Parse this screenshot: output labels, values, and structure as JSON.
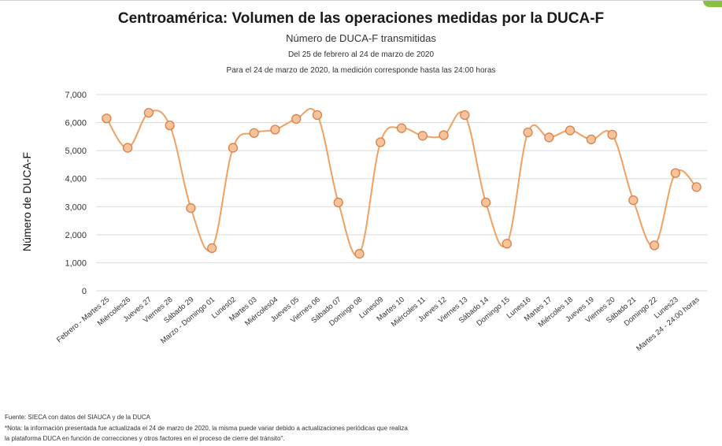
{
  "header": {
    "title": "Centroamérica: Volumen de las operaciones medidas por la DUCA-F",
    "subtitle": "Número de DUCA-F transmitidas",
    "date_range": "Del 25 de febrero al 24 de marzo de 2020",
    "measure_note": "Para el 24 de marzo de 2020, la medición corresponde hasta las 24:00 horas"
  },
  "footer": {
    "source": "Fuente: SIECA con datos del SIAUCA y de la DUCA",
    "note_line1": "*Nota: la información presentada fue actualizada el 24 de marzo de 2020, la misma puede variar debido a actualizaciones periódicas que realiza",
    "note_line2": "la plataforma DUCA en función de correcciones y otros factores en el proceso de cierre del tránsito\"."
  },
  "colors": {
    "line": "#f0a060",
    "marker_fill": "#f6c39a",
    "marker_stroke": "#d9814a",
    "grid": "#d9d9d9",
    "accent": "#8bbf3f"
  },
  "chart_data": {
    "type": "line",
    "title": "Centroamérica: Volumen de las operaciones medidas por la DUCA-F",
    "subtitle": "Número de DUCA-F transmitidas",
    "xlabel": "",
    "ylabel": "Número de DUCA-F",
    "ylim": [
      0,
      7000
    ],
    "yticks": [
      0,
      1000,
      2000,
      3000,
      4000,
      5000,
      6000,
      7000
    ],
    "ytick_labels": [
      "0",
      "1,000",
      "2,000",
      "3,000",
      "4,000",
      "5,000",
      "6,000",
      "7,000"
    ],
    "grid": "horizontal",
    "legend": "none",
    "smooth": true,
    "categories": [
      "Febrero - Martes 25",
      "Miércoles26",
      "Jueves 27",
      "Viernes 28",
      "Sábado 29",
      "Marzo - Domingo 01",
      "Lunes02",
      "Martes 03",
      "Miércoles04",
      "Jueves 05",
      "Viernes 06",
      "Sábado 07",
      "Domingo 08",
      "Lunes09",
      "Martes 10",
      "Miércoles 11",
      "Jueves 12",
      "Viernes 13",
      "Sábado 14",
      "Domingo 15",
      "Lunes16",
      "Martes 17",
      "Miércoles 18",
      "Jueves 19",
      "Viernes 20",
      "Sábado 21",
      "Domingo 22",
      "Lunes23",
      "Martes 24 - 24:00 horas"
    ],
    "values": [
      6150,
      5100,
      6350,
      5900,
      2950,
      1520,
      5100,
      5630,
      5750,
      6130,
      6270,
      3150,
      1320,
      5300,
      5800,
      5530,
      5550,
      6270,
      3150,
      1680,
      5650,
      5470,
      5720,
      5400,
      5570,
      3230,
      1620,
      4200,
      3700
    ]
  }
}
